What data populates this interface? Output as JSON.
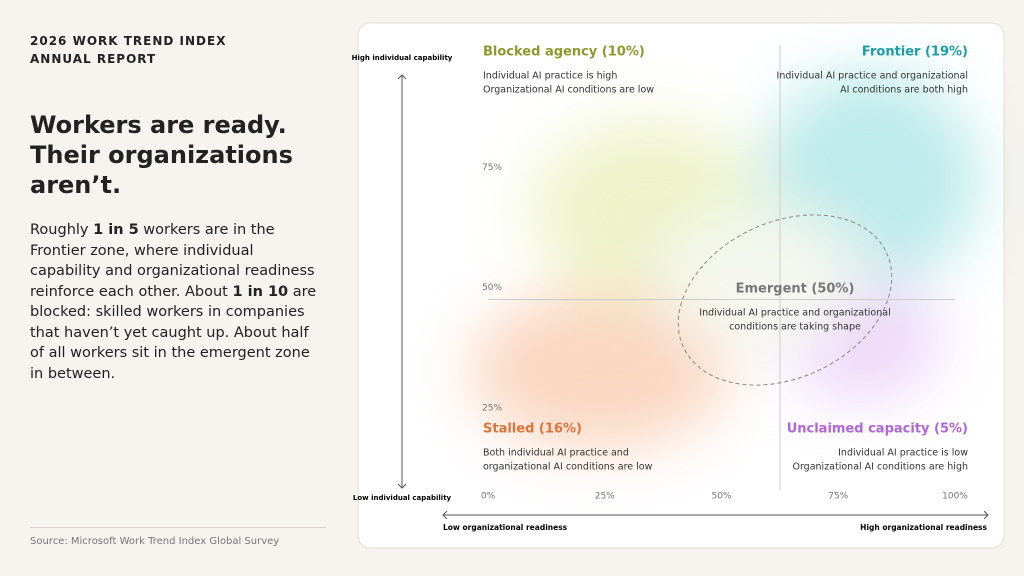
{
  "header": [
    "2026 WORK TREND INDEX",
    "ANNUAL REPORT"
  ],
  "headline": "Workers are ready. Their organizations aren’t.",
  "body": [
    "Roughly ",
    "1 in 5",
    " workers are in the Frontier zone, where individual capability and organizational readiness reinforce each other. About ",
    "1 in 10",
    " are blocked: skilled workers in companies that haven’t yet caught up. About half of all workers sit in the emergent zone in between."
  ],
  "source": "Source: Microsoft Work Trend Index Global Survey",
  "chart_data": {
    "type": "scatter",
    "y_axis_high": "High individual capability",
    "y_axis_low": "Low individual capability",
    "x_axis_low": "Low organizational readiness",
    "x_axis_high": "High organizational readiness",
    "xlim": [
      0,
      100
    ],
    "ylim": [
      0,
      100
    ],
    "xticks": [
      {
        "value": 0,
        "label": "0%"
      },
      {
        "value": 25,
        "label": "25%"
      },
      {
        "value": 50,
        "label": "50%"
      },
      {
        "value": 75,
        "label": "75%"
      },
      {
        "value": 100,
        "label": "100%"
      }
    ],
    "yticks": [
      {
        "value": 25,
        "label": "25%"
      },
      {
        "value": 50,
        "label": "50%"
      },
      {
        "value": 75,
        "label": "75%"
      }
    ],
    "quadrants": [
      {
        "title": "Blocked agency (10%)",
        "color": "#8a9a2e",
        "description": [
          "Individual AI practice is high",
          "Organizational AI conditions are low"
        ]
      },
      {
        "title": "Frontier (19%)",
        "color": "#1a9ea3",
        "description": [
          "Individual AI practice and organizational",
          "AI conditions are both high"
        ]
      },
      {
        "title": "Stalled (16%)",
        "color": "#e0733a",
        "description": [
          "Both individual AI practice and",
          "organizational AI conditions are low"
        ]
      },
      {
        "title": "Unclaimed capacity (5%)",
        "color": "#b066d9",
        "description": [
          "Individual AI practice is low",
          "Organizational AI conditions are high"
        ]
      },
      {
        "title": "Emergent (50%)",
        "color": "#777777",
        "description": [
          "Individual AI practice and organizational",
          "conditions are taking shape"
        ]
      }
    ]
  }
}
